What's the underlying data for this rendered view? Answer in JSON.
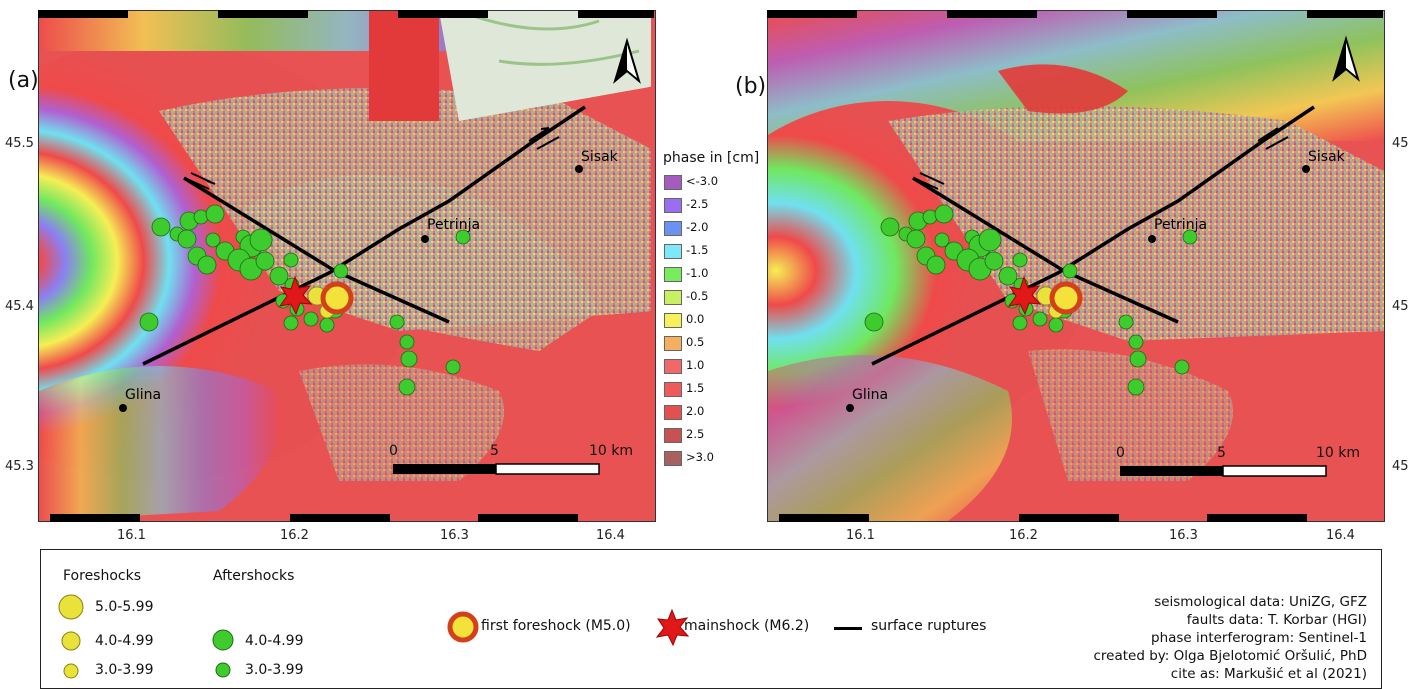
{
  "panels": [
    {
      "label": "(a)",
      "y_ticks_left": [
        "45.5",
        "45.4",
        "45.3"
      ],
      "x_ticks": [
        "16.1",
        "16.2",
        "16.3",
        "16.4"
      ],
      "towns": [
        "Sisak",
        "Petrinja",
        "Glina"
      ],
      "scale": [
        "0",
        "5",
        "10 km"
      ]
    },
    {
      "label": "(b)",
      "y_ticks_right": [
        "45",
        "45",
        "45"
      ],
      "x_ticks": [
        "16.1",
        "16.2",
        "16.3",
        "16.4"
      ],
      "towns": [
        "Sisak",
        "Petrinja",
        "Glina"
      ],
      "scale": [
        "0",
        "5",
        "10 km"
      ]
    }
  ],
  "phase_legend": {
    "title": "phase in [cm]",
    "items": [
      {
        "label": "<-3.0",
        "color": "#a45cc0"
      },
      {
        "label": "-2.5",
        "color": "#9a6ef0"
      },
      {
        "label": "-2.0",
        "color": "#6a92f0"
      },
      {
        "label": "-1.5",
        "color": "#7fe8f6"
      },
      {
        "label": "-1.0",
        "color": "#78ec5e"
      },
      {
        "label": "-0.5",
        "color": "#c8f060"
      },
      {
        "label": "0.0",
        "color": "#f6f05a"
      },
      {
        "label": "0.5",
        "color": "#f4b060"
      },
      {
        "label": "1.0",
        "color": "#f26868"
      },
      {
        "label": "1.5",
        "color": "#ef5a5a"
      },
      {
        "label": "2.0",
        "color": "#e25050"
      },
      {
        "label": "2.5",
        "color": "#c85252"
      },
      {
        "label": ">3.0",
        "color": "#a86060"
      }
    ]
  },
  "legend": {
    "foreshocks_title": "Foreshocks",
    "aftershocks_title": "Aftershocks",
    "foreshocks": [
      "5.0-5.99",
      "4.0-4.99",
      "3.0-3.99"
    ],
    "aftershocks": [
      "4.0-4.99",
      "3.0-3.99"
    ],
    "first_foreshock": "first foreshock (M5.0)",
    "mainshock": "mainshock (M6.2)",
    "surface_ruptures": "surface ruptures",
    "credits": [
      "seismological data: UniZG, GFZ",
      "faults data: T. Korbar (HGI)",
      "phase interferogram: Sentinel-1",
      "created by: Olga Bjelotomić Oršulić, PhD",
      "cite as: Markušić et al (2021)"
    ]
  },
  "colors": {
    "aftershock": "#3ecb2e",
    "foreshock": "#e8e23a",
    "first_foreshock_ring": "#d4401a",
    "mainshock": "#e01818",
    "rupture": "#000000"
  }
}
